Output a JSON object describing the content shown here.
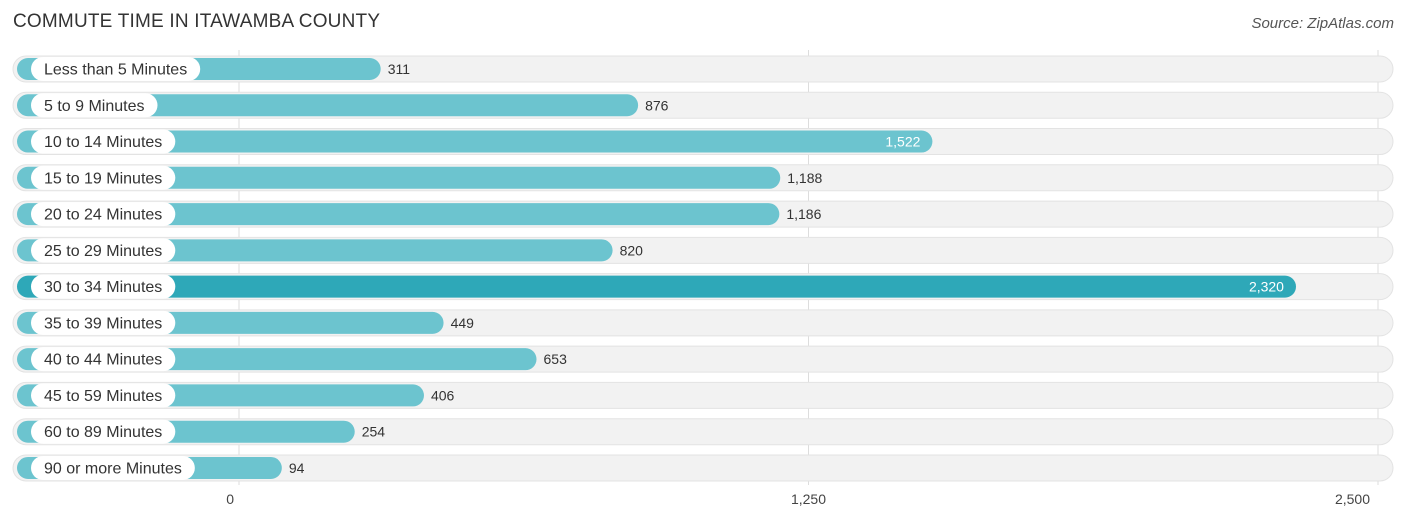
{
  "header": {
    "title": "COMMUTE TIME IN ITAWAMBA COUNTY",
    "source": "Source: ZipAtlas.com"
  },
  "colors": {
    "bar": "#6cc4cf",
    "bar_highlight": "#2ea8b8",
    "track": "#f2f2f2",
    "track_border": "#e3e3e3",
    "grid": "#dddddd",
    "label_pill": "#ffffff",
    "value_outside": "#333333",
    "value_inside": "#ffffff"
  },
  "chart_data": {
    "type": "bar",
    "orientation": "horizontal",
    "categories": [
      "Less than 5 Minutes",
      "5 to 9 Minutes",
      "10 to 14 Minutes",
      "15 to 19 Minutes",
      "20 to 24 Minutes",
      "25 to 29 Minutes",
      "30 to 34 Minutes",
      "35 to 39 Minutes",
      "40 to 44 Minutes",
      "45 to 59 Minutes",
      "60 to 89 Minutes",
      "90 or more Minutes"
    ],
    "values": [
      311,
      876,
      1522,
      1188,
      1186,
      820,
      2320,
      449,
      653,
      406,
      254,
      94
    ],
    "value_labels": [
      "311",
      "876",
      "1,522",
      "1,188",
      "1,186",
      "820",
      "2,320",
      "449",
      "653",
      "406",
      "254",
      "94"
    ],
    "xlim": [
      0,
      2500
    ],
    "ticks": [
      0,
      1250,
      2500
    ],
    "tick_labels": [
      "0",
      "1,250",
      "2,500"
    ],
    "grid": true
  }
}
